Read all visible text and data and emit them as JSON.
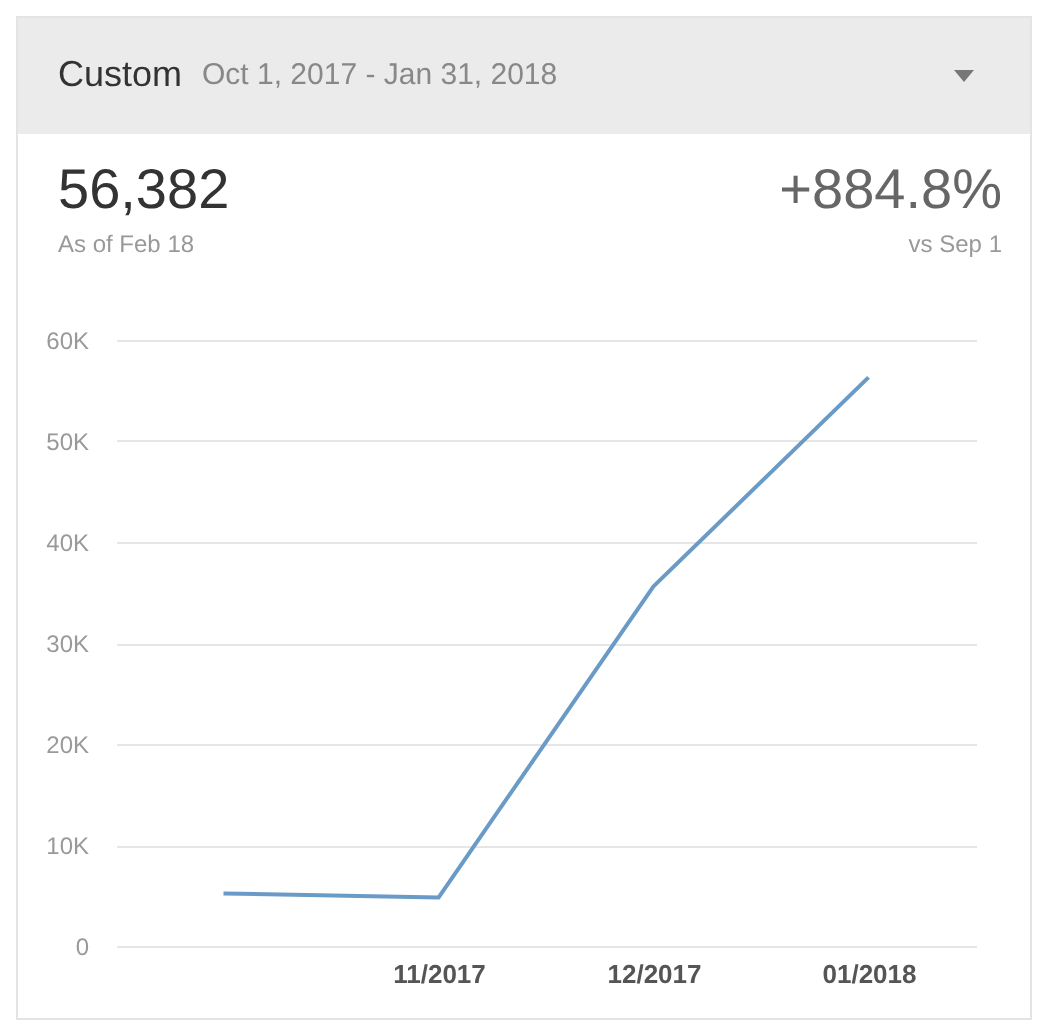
{
  "chart_data": {
    "type": "line",
    "title": "Custom",
    "subtitle": "Oct 1, 2017 - Jan 31, 2018",
    "annotations": [
      "56,382",
      "As of Feb 18",
      "+884.8%",
      "vs Sep 1"
    ],
    "categories": [
      null,
      "11/2017",
      "12/2017",
      "01/2018"
    ],
    "series": [
      {
        "color": "#6a9bc6",
        "values": [
          5200,
          4800,
          35600,
          56300
        ]
      }
    ],
    "ylim": [
      0,
      60000
    ],
    "yticks": [
      0,
      {
        "value": 10000,
        "label": "10K"
      },
      {
        "value": 20000,
        "label": "20K"
      },
      {
        "value": 30000,
        "label": "30K"
      },
      {
        "value": 40000,
        "label": "40K"
      },
      {
        "value": 50000,
        "label": "50K"
      },
      {
        "value": 60000,
        "label": "60K"
      }
    ],
    "grid": "y",
    "marker": "none",
    "line_style": "solid"
  }
}
